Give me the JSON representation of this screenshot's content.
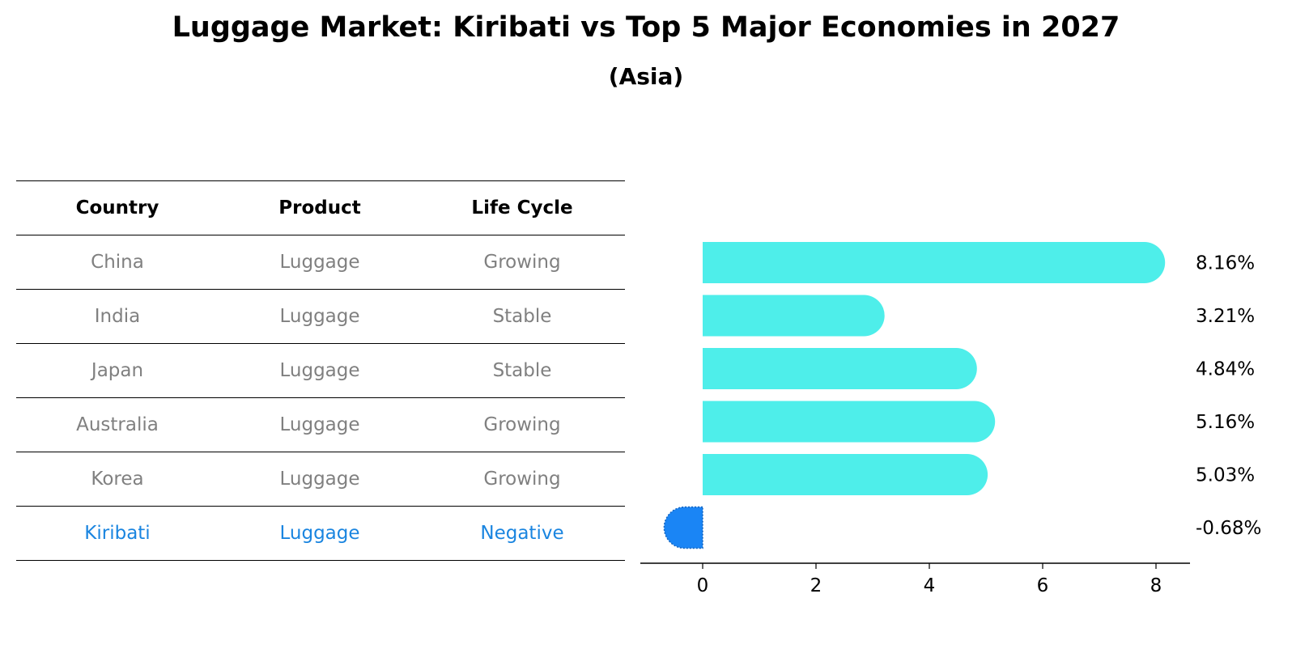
{
  "title": "Luggage Market: Kiribati vs Top 5 Major Economies in 2027",
  "subtitle": "(Asia)",
  "table": {
    "headers": [
      "Country",
      "Product",
      "Life Cycle"
    ],
    "rows": [
      [
        "China",
        "Luggage",
        "Growing"
      ],
      [
        "India",
        "Luggage",
        "Stable"
      ],
      [
        "Japan",
        "Luggage",
        "Stable"
      ],
      [
        "Australia",
        "Luggage",
        "Growing"
      ],
      [
        "Korea",
        "Luggage",
        "Growing"
      ],
      [
        "Kiribati",
        "Luggage",
        "Negative"
      ]
    ]
  },
  "colors": {
    "bar_positive": "#4eeeea",
    "bar_negative": "#1a85f5",
    "highlight_text": "#1a85e0",
    "muted_text": "#808080"
  },
  "chart_data": {
    "type": "bar",
    "orientation": "horizontal",
    "categories": [
      "China",
      "India",
      "Japan",
      "Australia",
      "Korea",
      "Kiribati"
    ],
    "values": [
      8.16,
      3.21,
      4.84,
      5.16,
      5.03,
      -0.68
    ],
    "value_labels": [
      "8.16%",
      "3.21%",
      "4.84%",
      "5.16%",
      "5.03%",
      "-0.68%"
    ],
    "xlim": [
      -1.1,
      8.6
    ],
    "xticks": [
      0,
      2,
      4,
      6,
      8
    ],
    "grid": false
  }
}
